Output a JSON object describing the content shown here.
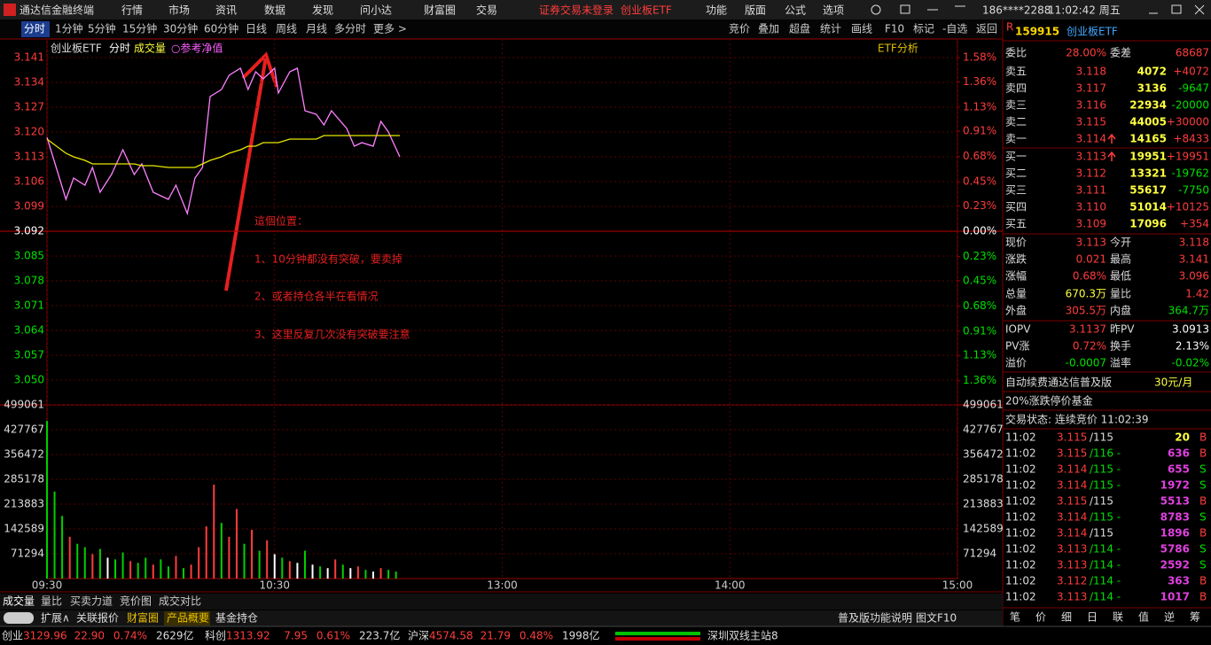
{
  "menubar": {
    "app": "通达信金融终端",
    "menus": [
      "行情",
      "市场",
      "资讯",
      "数据",
      "发现",
      "问小达",
      "财富圈",
      "交易"
    ],
    "notice": "证券交易未登录",
    "security": "创业板ETF",
    "right_menus": [
      "功能",
      "版面",
      "公式",
      "选项"
    ],
    "user": "186****2288",
    "time": "11:02:42 周五"
  },
  "toolbar": {
    "periods": [
      "分时",
      "1分钟",
      "5分钟",
      "15分钟",
      "30分钟",
      "60分钟",
      "日线",
      "周线",
      "月线",
      "多分时",
      "更多 >"
    ],
    "tools": [
      "竞价",
      "叠加",
      "超盘",
      "统计",
      "画线",
      "F10",
      "标记",
      "-自选",
      "返回"
    ]
  },
  "chart_data": [
    {
      "type": "line",
      "header": [
        "创业板ETF",
        "分时",
        "成交量",
        "○参考净值"
      ],
      "side_label": "ETF分析",
      "annotations": [
        "這個位置：",
        "1、10分钟都没有突破，要卖掉",
        "2、或者持仓各半在看情况",
        "3、这里反复几次没有突破要注意"
      ],
      "x": [
        0,
        5,
        7,
        10,
        12,
        14,
        17,
        20,
        23,
        25,
        28,
        32,
        34,
        37,
        39,
        41,
        43,
        46,
        48,
        51,
        53,
        55,
        57,
        60,
        61,
        64,
        66,
        68,
        71,
        73,
        75,
        79,
        81,
        83,
        86,
        88,
        90,
        93
      ],
      "xlim": [
        0,
        240
      ],
      "xticks": [
        {
          "value": 0,
          "label": "09:30"
        },
        {
          "value": 60,
          "label": "10:30"
        },
        {
          "value": 120,
          "label": "13:00"
        },
        {
          "value": 180,
          "label": "14:00"
        },
        {
          "value": 240,
          "label": "15:00"
        }
      ],
      "ylim": [
        3.043,
        3.1445
      ],
      "yticks": [
        3.141,
        3.134,
        3.127,
        {
          "value": 3.12,
          "label": "3.120"
        },
        3.113,
        3.106,
        3.099,
        3.092,
        3.085,
        3.078,
        3.071,
        3.064,
        3.057,
        {
          "value": 3.05,
          "label": "3.050"
        }
      ],
      "y2lim": [
        -1.58,
        1.693
      ],
      "y2ticks": [
        {
          "value": 1.58,
          "label": "1.58%"
        },
        {
          "value": 1.36,
          "label": "1.36%"
        },
        {
          "value": 1.13,
          "label": "1.13%"
        },
        {
          "value": 0.91,
          "label": "0.91%"
        },
        {
          "value": 0.68,
          "label": "0.68%"
        },
        {
          "value": 0.45,
          "label": "0.45%"
        },
        {
          "value": 0.23,
          "label": "0.23%"
        },
        {
          "value": 0,
          "label": "0.00%"
        },
        {
          "value": -0.23,
          "label": "0.23%"
        },
        {
          "value": -0.45,
          "label": "0.45%"
        },
        {
          "value": -0.68,
          "label": "0.68%"
        },
        {
          "value": -0.91,
          "label": "0.91%"
        },
        {
          "value": -1.13,
          "label": "1.13%"
        },
        {
          "value": -1.36,
          "label": "1.36%"
        }
      ],
      "grid": true,
      "series": [
        {
          "color": "#ff80ff",
          "values": [
            3.1185,
            3.101,
            3.107,
            3.105,
            3.11,
            3.103,
            3.108,
            3.115,
            3.108,
            3.111,
            3.103,
            3.101,
            3.105,
            3.097,
            3.107,
            3.11,
            3.13,
            3.132,
            3.136,
            3.138,
            3.132,
            3.137,
            3.135,
            3.138,
            3.131,
            3.137,
            3.138,
            3.126,
            3.125,
            3.122,
            3.126,
            3.121,
            3.116,
            3.117,
            3.116,
            3.123,
            3.12,
            3.113
          ]
        },
        {
          "color": "#e8e800",
          "values": [
            3.118,
            3.114,
            3.113,
            3.112,
            3.111,
            3.111,
            3.111,
            3.111,
            3.111,
            3.1105,
            3.1105,
            3.11,
            3.11,
            3.11,
            3.11,
            3.111,
            3.112,
            3.113,
            3.114,
            3.115,
            3.116,
            3.116,
            3.117,
            3.117,
            3.117,
            3.118,
            3.118,
            3.118,
            3.118,
            3.119,
            3.119,
            3.119,
            3.119,
            3.119,
            3.119,
            3.119,
            3.119,
            3.119
          ]
        }
      ]
    },
    {
      "type": "bar",
      "x": [
        0,
        2,
        4,
        6,
        8,
        10,
        12,
        14,
        16,
        18,
        20,
        22,
        24,
        26,
        28,
        30,
        32,
        34,
        36,
        38,
        40,
        42,
        44,
        46,
        48,
        50,
        52,
        54,
        56,
        58,
        60,
        62,
        64,
        66,
        68,
        70,
        72,
        74,
        76,
        78,
        80,
        82,
        84,
        86,
        88,
        90,
        92
      ],
      "values": [
        453000,
        250000,
        180000,
        120000,
        100000,
        90000,
        70000,
        85000,
        60000,
        55000,
        75000,
        50000,
        45000,
        60000,
        40000,
        55000,
        35000,
        65000,
        30000,
        40000,
        90000,
        150000,
        270000,
        160000,
        120000,
        200000,
        100000,
        140000,
        80000,
        110000,
        70000,
        60000,
        50000,
        45000,
        80000,
        40000,
        35000,
        30000,
        55000,
        40000,
        30000,
        35000,
        25000,
        20000,
        30000,
        25000,
        20000
      ],
      "colors": [
        "#00d000",
        "#00d000",
        "#00d000",
        "#ff3c3c",
        "#00d000",
        "#00d000",
        "#ff3c3c",
        "#00d000",
        "#ffffff",
        "#00d000",
        "#00d000",
        "#ff3c3c",
        "#00d000",
        "#00d000",
        "#ff3c3c",
        "#00d000",
        "#00d000",
        "#ff3c3c",
        "#00d000",
        "#ff3c3c",
        "#ff3c3c",
        "#ff3c3c",
        "#ff3c3c",
        "#00d000",
        "#ff3c3c",
        "#ff3c3c",
        "#00d000",
        "#ff3c3c",
        "#00d000",
        "#ff3c3c",
        "#ffffff",
        "#00d000",
        "#ff3c3c",
        "#ffffff",
        "#00d000",
        "#ffffff",
        "#00d000",
        "#ffffff",
        "#ff3c3c",
        "#00d000",
        "#ffffff",
        "#ff3c3c",
        "#00d000",
        "#ffffff",
        "#ff3c3c",
        "#00d000",
        "#00d000"
      ],
      "xlim": [
        0,
        240
      ],
      "ylim": [
        0,
        499061
      ],
      "yticks": [
        71294,
        142589,
        213883,
        285178,
        356472,
        427767,
        499061
      ],
      "grid": true
    }
  ],
  "quote": {
    "badge": "R",
    "code": "159915",
    "name": "创业板ETF",
    "ratio_label": "委比",
    "ratio": "28.00%",
    "diff_label": "委差",
    "diff": "68687",
    "asks": [
      {
        "label": "卖五",
        "price": "3.118",
        "volume": "4072",
        "change": "+4072"
      },
      {
        "label": "卖四",
        "price": "3.117",
        "volume": "3136",
        "change": "-9647"
      },
      {
        "label": "卖三",
        "price": "3.116",
        "volume": "22934",
        "change": "-20000"
      },
      {
        "label": "卖二",
        "price": "3.115",
        "volume": "44005",
        "change": "+30000"
      },
      {
        "label": "卖一",
        "price": "3.114",
        "volume": "14165",
        "change": "+8433"
      }
    ],
    "bids": [
      {
        "label": "买一",
        "price": "3.113",
        "volume": "19951",
        "change": "+19951"
      },
      {
        "label": "买二",
        "price": "3.112",
        "volume": "13321",
        "change": "-19762"
      },
      {
        "label": "买三",
        "price": "3.111",
        "volume": "55617",
        "change": "-7750"
      },
      {
        "label": "买四",
        "price": "3.110",
        "volume": "51014",
        "change": "+10125"
      },
      {
        "label": "买五",
        "price": "3.109",
        "volume": "17096",
        "change": "+354"
      }
    ],
    "stats": [
      [
        {
          "label": "现价",
          "value": "3.113",
          "color": "#ff3c3c"
        },
        {
          "label": "今开",
          "value": "3.118",
          "color": "#ff3c3c"
        }
      ],
      [
        {
          "label": "涨跌",
          "value": "0.021",
          "color": "#ff3c3c"
        },
        {
          "label": "最高",
          "value": "3.141",
          "color": "#ff3c3c"
        }
      ],
      [
        {
          "label": "涨幅",
          "value": "0.68%",
          "color": "#ff3c3c"
        },
        {
          "label": "最低",
          "value": "3.096",
          "color": "#ff3c3c"
        }
      ],
      [
        {
          "label": "总量",
          "value": "670.3万",
          "color": "#ffff40"
        },
        {
          "label": "量比",
          "value": "1.42",
          "color": "#ff3c3c"
        }
      ],
      [
        {
          "label": "外盘",
          "value": "305.5万",
          "color": "#ff3c3c"
        },
        {
          "label": "内盘",
          "value": "364.7万",
          "color": "#00e000"
        }
      ],
      [
        {
          "label": "IOPV",
          "value": "3.1137",
          "color": "#ff3c3c"
        },
        {
          "label": "昨PV",
          "value": "3.0913",
          "color": "#ffffff"
        }
      ],
      [
        {
          "label": "PV涨",
          "value": "0.72%",
          "color": "#ff3c3c"
        },
        {
          "label": "换手",
          "value": "2.13%",
          "color": "#ffffff"
        }
      ],
      [
        {
          "label": "溢价",
          "value": "-0.0007",
          "color": "#00e000"
        },
        {
          "label": "溢率",
          "value": "-0.02%",
          "color": "#00e000"
        }
      ]
    ],
    "ad": "自动续费通达信普及版",
    "ad_price": "30元/月",
    "fund_type": "20%涨跌停价基金",
    "trade_status": "交易状态: 连续竞价 11:02:39",
    "ticks": [
      {
        "time": "11:02",
        "price": "3.115",
        "quote": "/115",
        "volume": "20",
        "side": "B"
      },
      {
        "time": "11:02",
        "price": "3.115",
        "quote": "/116 -",
        "volume": "636",
        "side": "B"
      },
      {
        "time": "11:02",
        "price": "3.114",
        "quote": "/115 -",
        "volume": "655",
        "side": "S"
      },
      {
        "time": "11:02",
        "price": "3.114",
        "quote": "/115 -",
        "volume": "1972",
        "side": "S"
      },
      {
        "time": "11:02",
        "price": "3.115",
        "quote": "/115",
        "volume": "5513",
        "side": "B"
      },
      {
        "time": "11:02",
        "price": "3.114",
        "quote": "/115 -",
        "volume": "8783",
        "side": "S"
      },
      {
        "time": "11:02",
        "price": "3.114",
        "quote": "/115",
        "volume": "1896",
        "side": "B"
      },
      {
        "time": "11:02",
        "price": "3.113",
        "quote": "/114 -",
        "volume": "5786",
        "side": "S"
      },
      {
        "time": "11:02",
        "price": "3.113",
        "quote": "/114 -",
        "volume": "2592",
        "side": "S"
      },
      {
        "time": "11:02",
        "price": "3.112",
        "quote": "/114 -",
        "volume": "363",
        "side": "B"
      },
      {
        "time": "11:02",
        "price": "3.113",
        "quote": "/114 -",
        "volume": "1017",
        "side": "B"
      }
    ],
    "tabs": [
      "笔",
      "价",
      "细",
      "日",
      "联",
      "值",
      "逆",
      "筹"
    ]
  },
  "bottom_tabs": [
    "成交量",
    "量比",
    "买卖力道",
    "竞价图",
    "成交对比"
  ],
  "sub_tabs": [
    "扩展∧",
    "关联报价",
    "财富圈",
    "产品概要",
    "基金持仓"
  ],
  "sub_tabs_right": [
    "普及版功能说明",
    "图文F10"
  ],
  "status_bar": {
    "indices": [
      {
        "name": "创业",
        "value": "3129.96",
        "change": "22.90",
        "pct": "0.74%",
        "amount": "2629亿"
      },
      {
        "name": "科创",
        "value": "1313.92",
        "change": "7.95",
        "pct": "0.61%",
        "amount": "223.7亿"
      },
      {
        "name": "沪深",
        "value": "4574.58",
        "change": "21.79",
        "pct": "0.48%",
        "amount": "1998亿"
      }
    ],
    "server": "深圳双线主站8"
  }
}
